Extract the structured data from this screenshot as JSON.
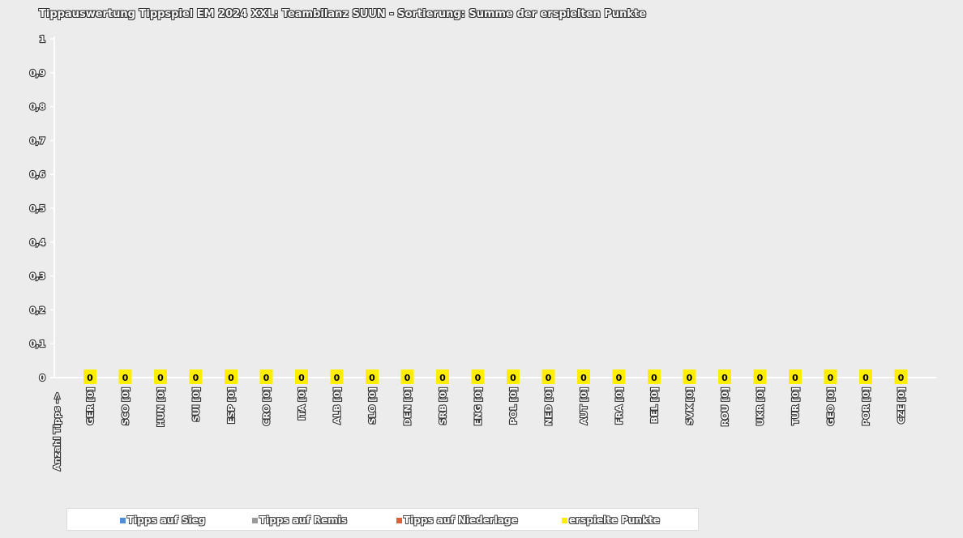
{
  "chart_data": {
    "type": "bar",
    "title": "Tippauswertung Tippspiel EM 2024 XXL: Teambilanz SUUN - Sortierung: Summe der erspielten Punkte",
    "ylim": [
      0,
      1
    ],
    "yticks": [
      "0",
      "0,1",
      "0,2",
      "0,3",
      "0,4",
      "0,5",
      "0,6",
      "0,7",
      "0,8",
      "0,9",
      "1"
    ],
    "y_axis_annotation": "Anzahl Tipps ->",
    "categories": [
      "GER [0]",
      "SCO [0]",
      "HUN [0]",
      "SUI [0]",
      "ESP [0]",
      "CRO [0]",
      "ITA [0]",
      "ALB [0]",
      "SLO [0]",
      "DEN [0]",
      "SRB [0]",
      "ENG [0]",
      "POL [0]",
      "NED [0]",
      "AUT [0]",
      "FRA [0]",
      "BEL [0]",
      "SVK [0]",
      "ROU [0]",
      "UKR [0]",
      "TUR [0]",
      "GEO [0]",
      "POR [0]",
      "CZE [0]"
    ],
    "series": [
      {
        "name": "Tipps auf Sieg",
        "color": "#4a90d9",
        "values": [
          0,
          0,
          0,
          0,
          0,
          0,
          0,
          0,
          0,
          0,
          0,
          0,
          0,
          0,
          0,
          0,
          0,
          0,
          0,
          0,
          0,
          0,
          0,
          0
        ]
      },
      {
        "name": "Tipps auf Remis",
        "color": "#9a9a9a",
        "values": [
          0,
          0,
          0,
          0,
          0,
          0,
          0,
          0,
          0,
          0,
          0,
          0,
          0,
          0,
          0,
          0,
          0,
          0,
          0,
          0,
          0,
          0,
          0,
          0
        ]
      },
      {
        "name": "Tipps auf Niederlage",
        "color": "#d9623a",
        "values": [
          0,
          0,
          0,
          0,
          0,
          0,
          0,
          0,
          0,
          0,
          0,
          0,
          0,
          0,
          0,
          0,
          0,
          0,
          0,
          0,
          0,
          0,
          0,
          0
        ]
      },
      {
        "name": "erspielte Punkte",
        "color": "#ffee00",
        "values": [
          0,
          0,
          0,
          0,
          0,
          0,
          0,
          0,
          0,
          0,
          0,
          0,
          0,
          0,
          0,
          0,
          0,
          0,
          0,
          0,
          0,
          0,
          0,
          0
        ]
      }
    ],
    "data_labels": [
      "0",
      "0",
      "0",
      "0",
      "0",
      "0",
      "0",
      "0",
      "0",
      "0",
      "0",
      "0",
      "0",
      "0",
      "0",
      "0",
      "0",
      "0",
      "0",
      "0",
      "0",
      "0",
      "0",
      "0"
    ],
    "grid": false,
    "legend_position": "bottom"
  }
}
